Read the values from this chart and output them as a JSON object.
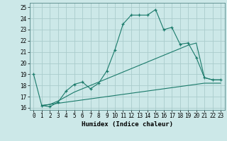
{
  "title": "",
  "xlabel": "Humidex (Indice chaleur)",
  "ylabel": "",
  "background_color": "#cce8e8",
  "grid_color": "#aacccc",
  "line_color": "#1a7a6a",
  "xlim": [
    -0.5,
    23.5
  ],
  "ylim": [
    15.8,
    25.4
  ],
  "yticks": [
    16,
    17,
    18,
    19,
    20,
    21,
    22,
    23,
    24,
    25
  ],
  "xticks": [
    0,
    1,
    2,
    3,
    4,
    5,
    6,
    7,
    8,
    9,
    10,
    11,
    12,
    13,
    14,
    15,
    16,
    17,
    18,
    19,
    20,
    21,
    22,
    23
  ],
  "line1_x": [
    0,
    1,
    2,
    3,
    4,
    5,
    6,
    7,
    8,
    9,
    10,
    11,
    12,
    13,
    14,
    15,
    16,
    17,
    18,
    19,
    20,
    21,
    22,
    23
  ],
  "line1_y": [
    19.0,
    16.2,
    16.1,
    16.5,
    17.5,
    18.1,
    18.3,
    17.7,
    18.2,
    19.3,
    21.2,
    23.5,
    24.3,
    24.3,
    24.3,
    24.8,
    23.0,
    23.2,
    21.7,
    21.8,
    20.5,
    18.7,
    18.5,
    18.5
  ],
  "line2_x": [
    1,
    2,
    3,
    4,
    5,
    6,
    7,
    8,
    9,
    10,
    11,
    12,
    13,
    14,
    15,
    16,
    17,
    18,
    19,
    20,
    21,
    22,
    23
  ],
  "line2_y": [
    16.2,
    16.3,
    16.6,
    17.0,
    17.4,
    17.7,
    18.0,
    18.3,
    18.6,
    18.9,
    19.2,
    19.5,
    19.8,
    20.1,
    20.4,
    20.7,
    21.0,
    21.3,
    21.6,
    21.8,
    18.7,
    18.5,
    18.5
  ],
  "line3_x": [
    1,
    2,
    3,
    4,
    5,
    6,
    7,
    8,
    9,
    10,
    11,
    12,
    13,
    14,
    15,
    16,
    17,
    18,
    19,
    20,
    21,
    22,
    23
  ],
  "line3_y": [
    16.2,
    16.3,
    16.4,
    16.5,
    16.6,
    16.7,
    16.8,
    16.9,
    17.0,
    17.1,
    17.2,
    17.3,
    17.4,
    17.5,
    17.6,
    17.7,
    17.8,
    17.9,
    18.0,
    18.1,
    18.2,
    18.2,
    18.2
  ],
  "xlabel_fontsize": 6.5,
  "tick_fontsize": 5.5
}
